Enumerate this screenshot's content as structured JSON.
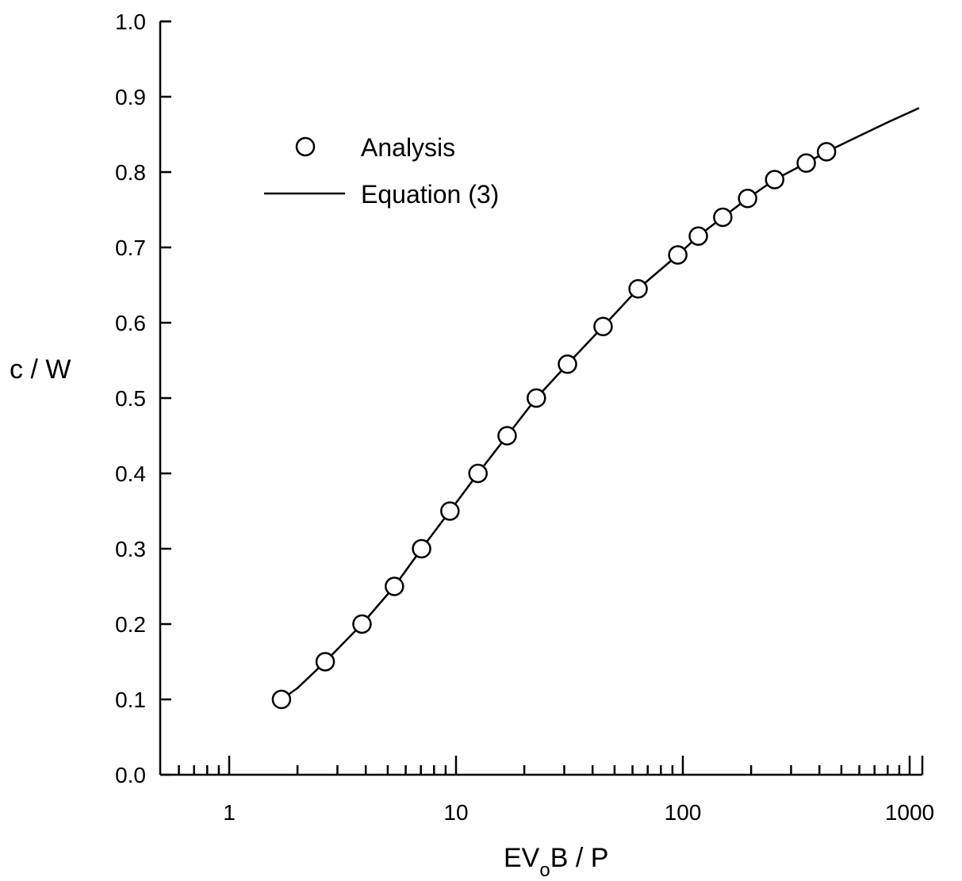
{
  "chart_data": {
    "type": "scatter",
    "title": "",
    "xlabel_parts": {
      "main": "EV",
      "sub": "o",
      "rest": "B / P"
    },
    "ylabel": "c / W",
    "x_scale": "log",
    "xlim": [
      0.5,
      1000
    ],
    "ylim": [
      0.0,
      1.0
    ],
    "x_tick_labels": [
      "1",
      "10",
      "100",
      "1000"
    ],
    "x_tick_values": [
      1,
      10,
      100,
      1000
    ],
    "y_tick_labels": [
      "0.0",
      "0.1",
      "0.2",
      "0.3",
      "0.4",
      "0.5",
      "0.6",
      "0.7",
      "0.8",
      "0.9",
      "1.0"
    ],
    "y_tick_values": [
      0.0,
      0.1,
      0.2,
      0.3,
      0.4,
      0.5,
      0.6,
      0.7,
      0.8,
      0.9,
      1.0
    ],
    "grid": false,
    "legend": {
      "position": "upper-left",
      "entries": [
        {
          "label": "Analysis",
          "marker": "open-circle"
        },
        {
          "label": "Equation (3)",
          "marker": "line"
        }
      ]
    },
    "series": [
      {
        "name": "Analysis",
        "kind": "markers",
        "points": [
          [
            1.7,
            0.1
          ],
          [
            2.65,
            0.15
          ],
          [
            3.85,
            0.2
          ],
          [
            5.35,
            0.25
          ],
          [
            7.05,
            0.3
          ],
          [
            9.4,
            0.35
          ],
          [
            12.5,
            0.4
          ],
          [
            16.8,
            0.45
          ],
          [
            22.6,
            0.5
          ],
          [
            31.0,
            0.545
          ],
          [
            44.5,
            0.595
          ],
          [
            63.5,
            0.645
          ],
          [
            95.0,
            0.69
          ],
          [
            117.0,
            0.715
          ],
          [
            150.0,
            0.74
          ],
          [
            193.0,
            0.765
          ],
          [
            254.0,
            0.79
          ],
          [
            350.0,
            0.812
          ],
          [
            430.0,
            0.827
          ]
        ]
      },
      {
        "name": "Equation (3)",
        "kind": "line",
        "points": [
          [
            1.7,
            0.1
          ],
          [
            2.0,
            0.115
          ],
          [
            2.65,
            0.15
          ],
          [
            3.85,
            0.2
          ],
          [
            5.35,
            0.25
          ],
          [
            7.05,
            0.3
          ],
          [
            9.4,
            0.35
          ],
          [
            12.5,
            0.4
          ],
          [
            16.8,
            0.45
          ],
          [
            22.6,
            0.5
          ],
          [
            31.0,
            0.545
          ],
          [
            44.5,
            0.595
          ],
          [
            63.5,
            0.645
          ],
          [
            95.0,
            0.69
          ],
          [
            117.0,
            0.715
          ],
          [
            150.0,
            0.74
          ],
          [
            193.0,
            0.765
          ],
          [
            254.0,
            0.79
          ],
          [
            350.0,
            0.812
          ],
          [
            430.0,
            0.827
          ],
          [
            600.0,
            0.848
          ],
          [
            800.0,
            0.866
          ],
          [
            1100.0,
            0.885
          ]
        ]
      }
    ]
  }
}
